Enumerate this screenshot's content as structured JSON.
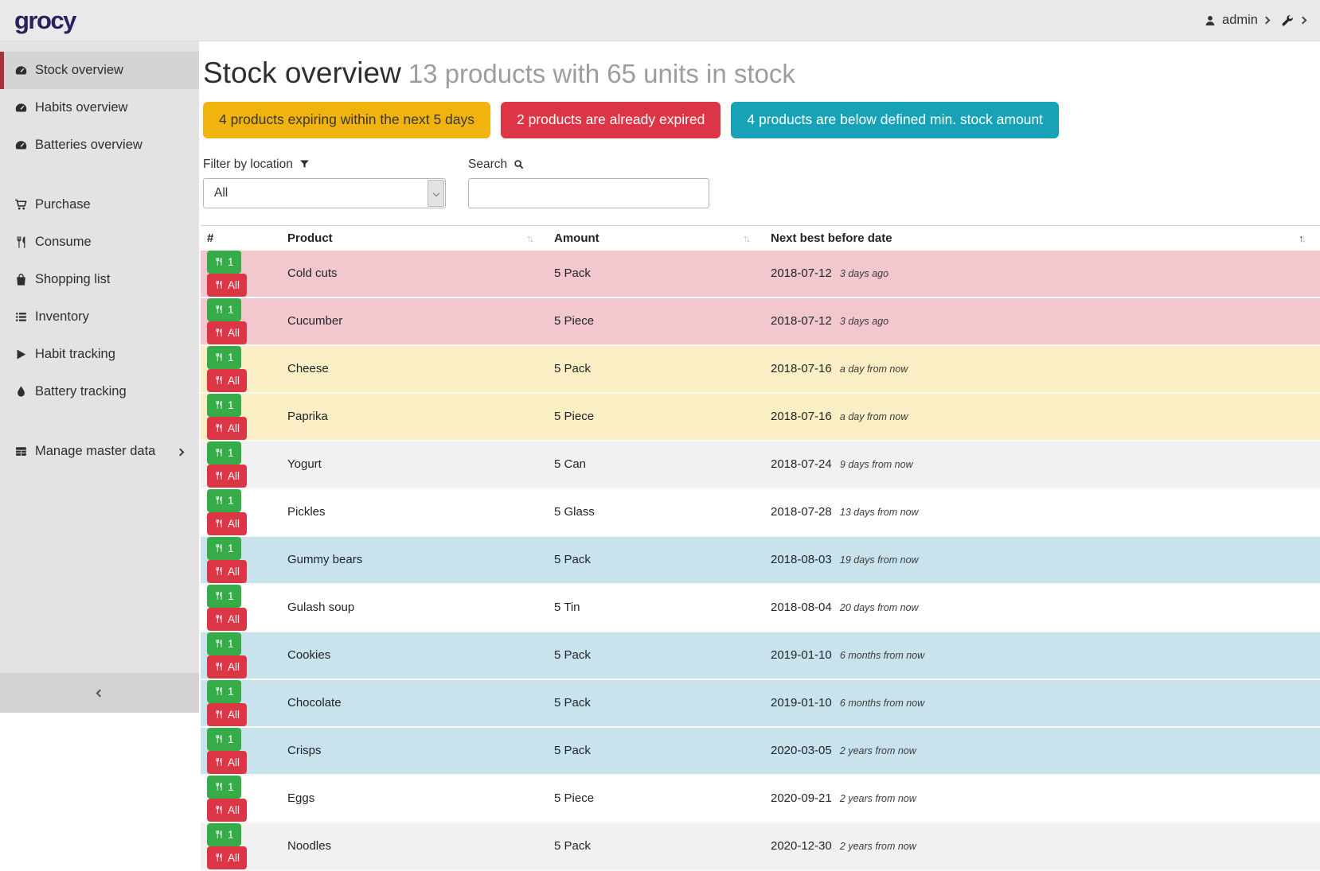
{
  "navbar": {
    "logo": "grocy",
    "user": "admin"
  },
  "sidebar": {
    "items": [
      {
        "label": "Stock overview",
        "icon": "tachometer-icon",
        "active": true,
        "group_start": false
      },
      {
        "label": "Habits overview",
        "icon": "tachometer-icon",
        "active": false,
        "group_start": false
      },
      {
        "label": "Batteries overview",
        "icon": "tachometer-icon",
        "active": false,
        "group_start": false
      },
      {
        "label": "Purchase",
        "icon": "cart-icon",
        "active": false,
        "group_start": true
      },
      {
        "label": "Consume",
        "icon": "utensils-icon",
        "active": false,
        "group_start": false
      },
      {
        "label": "Shopping list",
        "icon": "bag-icon",
        "active": false,
        "group_start": false
      },
      {
        "label": "Inventory",
        "icon": "list-icon",
        "active": false,
        "group_start": false
      },
      {
        "label": "Habit tracking",
        "icon": "play-icon",
        "active": false,
        "group_start": false
      },
      {
        "label": "Battery tracking",
        "icon": "droplet-icon",
        "active": false,
        "group_start": false
      },
      {
        "label": "Manage master data",
        "icon": "table-icon",
        "active": false,
        "group_start": true,
        "chevron": true
      }
    ]
  },
  "page": {
    "title": "Stock overview",
    "subtitle": "13 products with 65 units in stock",
    "badges": [
      {
        "text": "4 products expiring within the next 5 days",
        "bg": "#f1b30e",
        "fg": "#373737"
      },
      {
        "text": "2 products are already expired",
        "bg": "#dc3545",
        "fg": "#ffffff"
      },
      {
        "text": "4 products are below defined min. stock amount",
        "bg": "#17a2b8",
        "fg": "#ffffff"
      }
    ],
    "filter": {
      "label": "Filter by location",
      "value": "All"
    },
    "search": {
      "label": "Search",
      "value": ""
    }
  },
  "table": {
    "columns": [
      "#",
      "Product",
      "Amount",
      "Next best before date"
    ],
    "buttons": {
      "consume_one": "1",
      "consume_all": "All"
    },
    "rows": [
      {
        "product": "Cold cuts",
        "amount": "5 Pack",
        "date": "2018-07-12",
        "relative": "3 days ago",
        "status": "expired"
      },
      {
        "product": "Cucumber",
        "amount": "5 Piece",
        "date": "2018-07-12",
        "relative": "3 days ago",
        "status": "expired"
      },
      {
        "product": "Cheese",
        "amount": "5 Pack",
        "date": "2018-07-16",
        "relative": "a day from now",
        "status": "expiring"
      },
      {
        "product": "Paprika",
        "amount": "5 Piece",
        "date": "2018-07-16",
        "relative": "a day from now",
        "status": "expiring"
      },
      {
        "product": "Yogurt",
        "amount": "5 Can",
        "date": "2018-07-24",
        "relative": "9 days from now",
        "status": "none"
      },
      {
        "product": "Pickles",
        "amount": "5 Glass",
        "date": "2018-07-28",
        "relative": "13 days from now",
        "status": "none"
      },
      {
        "product": "Gummy bears",
        "amount": "5 Pack",
        "date": "2018-08-03",
        "relative": "19 days from now",
        "status": "belowmin"
      },
      {
        "product": "Gulash soup",
        "amount": "5 Tin",
        "date": "2018-08-04",
        "relative": "20 days from now",
        "status": "none"
      },
      {
        "product": "Cookies",
        "amount": "5 Pack",
        "date": "2019-01-10",
        "relative": "6 months from now",
        "status": "belowmin"
      },
      {
        "product": "Chocolate",
        "amount": "5 Pack",
        "date": "2019-01-10",
        "relative": "6 months from now",
        "status": "belowmin"
      },
      {
        "product": "Crisps",
        "amount": "5 Pack",
        "date": "2020-03-05",
        "relative": "2 years from now",
        "status": "belowmin"
      },
      {
        "product": "Eggs",
        "amount": "5 Piece",
        "date": "2020-09-21",
        "relative": "2 years from now",
        "status": "none"
      },
      {
        "product": "Noodles",
        "amount": "5 Pack",
        "date": "2020-12-30",
        "relative": "2 years from now",
        "status": "belowmin_no",
        "status_fix": "none"
      }
    ]
  },
  "icons": {
    "sort_up": "↑",
    "sort_down": "↓"
  },
  "colors": {
    "accent_red": "#a8323a",
    "logo_navy": "#29215c",
    "row_expired": "#f3c7ce",
    "row_expiring": "#faeec4",
    "row_below_min": "#c8e3ec",
    "button_green": "#35ac47",
    "button_red": "#dc3545"
  }
}
